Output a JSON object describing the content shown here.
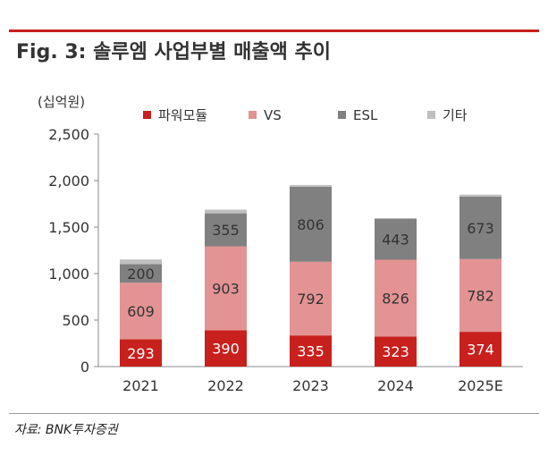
{
  "title": "Fig. 3: 솔루엠 사업부별 매출액 추이",
  "source": "자료: BNK투자증권",
  "chart_data": {
    "type": "bar",
    "stacked": true,
    "unit_label": "(십억원)",
    "categories": [
      "2021",
      "2022",
      "2023",
      "2024",
      "2025E"
    ],
    "series": [
      {
        "name": "파워모듈",
        "color": "#c8201d",
        "values": [
          293,
          390,
          335,
          323,
          374
        ],
        "label_color": "#ffffff"
      },
      {
        "name": "VS",
        "color": "#e39393",
        "values": [
          609,
          903,
          792,
          826,
          782
        ],
        "label_color": "#333333"
      },
      {
        "name": "ESL",
        "color": "#808080",
        "values": [
          200,
          355,
          806,
          443,
          673
        ],
        "label_color": "#333333"
      },
      {
        "name": "기타",
        "color": "#bfbfbf",
        "values": [
          50,
          40,
          20,
          0,
          20
        ],
        "label_color": "#333333"
      }
    ],
    "data_labels": [
      [
        "293",
        "390",
        "335",
        "323",
        "374"
      ],
      [
        "609",
        "903",
        "792",
        "826",
        "782"
      ],
      [
        "200",
        "355",
        "806",
        "443",
        "673"
      ],
      [
        "",
        "",
        "",
        "",
        ""
      ]
    ],
    "ylim": [
      0,
      2500
    ],
    "yticks": [
      "0",
      "500",
      "1,000",
      "1,500",
      "2,000",
      "2,500"
    ],
    "ytick_values": [
      0,
      500,
      1000,
      1500,
      2000,
      2500
    ],
    "legend_position": "top",
    "grid": false
  }
}
